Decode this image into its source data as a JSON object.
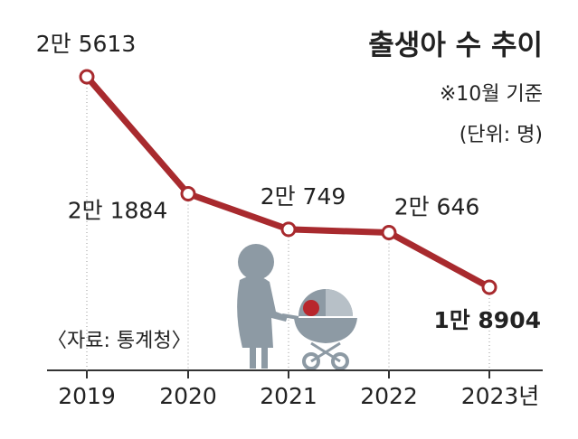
{
  "chart_data": {
    "type": "line",
    "title": "출생아 수 추이",
    "subtitle": "※10월 기준",
    "unit": "(단위: 명)",
    "source": "〈자료: 통계청〉",
    "categories": [
      "2019",
      "2020",
      "2021",
      "2022",
      "2023년"
    ],
    "values": [
      25613,
      21884,
      20749,
      20646,
      18904
    ],
    "value_labels": [
      "2만 5613",
      "2만 1884",
      "2만 749",
      "2만 646",
      "1만 8904"
    ],
    "color": "#a82a2e"
  }
}
